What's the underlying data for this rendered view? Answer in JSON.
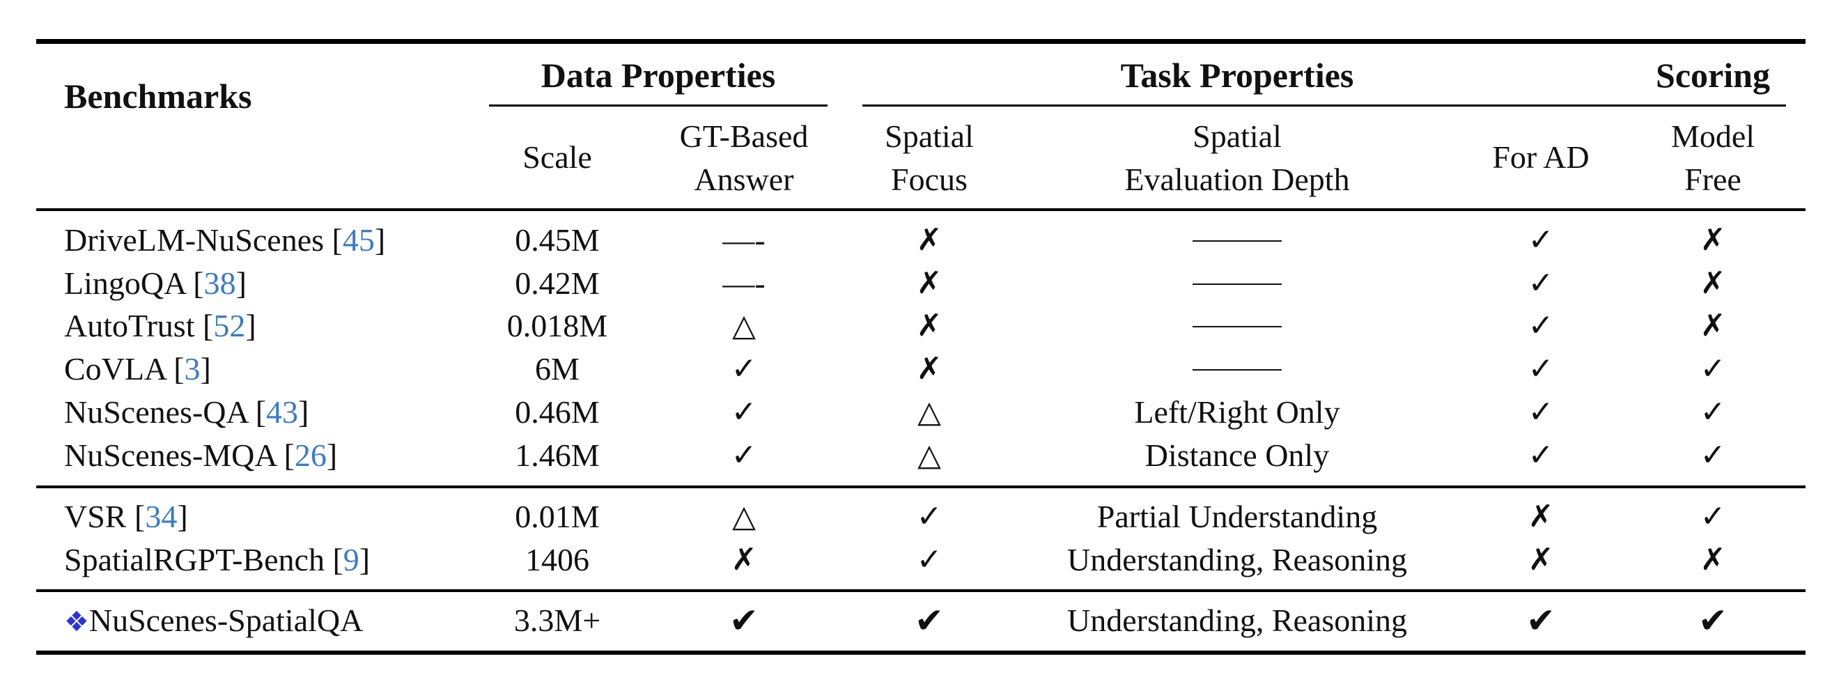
{
  "header": {
    "benchmarks": "Benchmarks",
    "groups": {
      "data_properties": "Data Properties",
      "task_properties": "Task Properties",
      "scoring": "Scoring"
    },
    "columns": {
      "scale": "Scale",
      "gt_based_l1": "GT-Based",
      "gt_based_l2": "Answer",
      "spatial_focus_l1": "Spatial",
      "spatial_focus_l2": "Focus",
      "eval_depth_l1": "Spatial",
      "eval_depth_l2": "Evaluation Depth",
      "for_ad": "For AD",
      "model_free_l1": "Model",
      "model_free_l2": "Free"
    }
  },
  "symbols": {
    "check": "✓",
    "cross": "✗",
    "triangle": "△",
    "bold_check": "✔",
    "diamond": "❖",
    "short_dash": "—-"
  },
  "rows": [
    {
      "name": "DriveLM-NuScenes",
      "ref": "45",
      "scale": "0.45M",
      "gt": "dash",
      "focus": "cross",
      "depth": "",
      "ad": "check",
      "free": "cross"
    },
    {
      "name": "LingoQA",
      "ref": "38",
      "scale": "0.42M",
      "gt": "dash",
      "focus": "cross",
      "depth": "",
      "ad": "check",
      "free": "cross"
    },
    {
      "name": "AutoTrust",
      "ref": "52",
      "scale": "0.018M",
      "gt": "triangle",
      "focus": "cross",
      "depth": "",
      "ad": "check",
      "free": "cross"
    },
    {
      "name": "CoVLA",
      "ref": "3",
      "scale": "6M",
      "gt": "check",
      "focus": "cross",
      "depth": "",
      "ad": "check",
      "free": "check"
    },
    {
      "name": "NuScenes-QA",
      "ref": "43",
      "scale": "0.46M",
      "gt": "check",
      "focus": "triangle",
      "depth": "Left/Right Only",
      "ad": "check",
      "free": "check"
    },
    {
      "name": "NuScenes-MQA",
      "ref": "26",
      "scale": "1.46M",
      "gt": "check",
      "focus": "triangle",
      "depth": "Distance Only",
      "ad": "check",
      "free": "check"
    },
    {
      "name": "VSR",
      "ref": "34",
      "scale": "0.01M",
      "gt": "triangle",
      "focus": "check",
      "depth": "Partial Understanding",
      "ad": "cross",
      "free": "check"
    },
    {
      "name": "SpatialRGPT-Bench",
      "ref": "9",
      "scale": "1406",
      "gt": "cross",
      "focus": "check",
      "depth": "Understanding, Reasoning",
      "ad": "cross",
      "free": "cross"
    },
    {
      "name": "NuScenes-SpatialQA",
      "ref": "",
      "scale": "3.3M+",
      "gt": "bold_check",
      "focus": "bold_check",
      "depth": "Understanding, Reasoning",
      "ad": "bold_check",
      "free": "bold_check"
    }
  ]
}
